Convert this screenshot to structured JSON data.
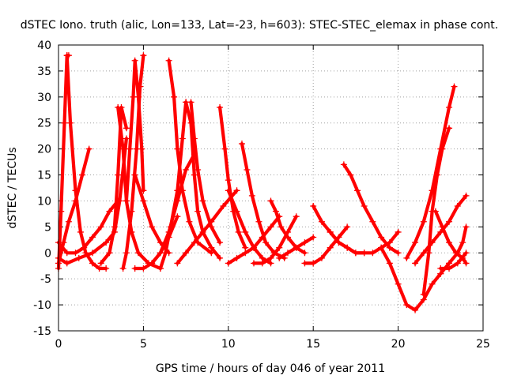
{
  "chart_data": {
    "type": "scatter",
    "title": "dSTEC Iono. truth (alic, Lon=133, Lat=-23, h=603): STEC-STEC_elemax in phase cont.",
    "xlabel": "GPS time / hours of day 046 of year 2011",
    "ylabel": "dSTEC  / TECUs",
    "xlim": [
      0,
      25
    ],
    "ylim": [
      -15,
      40
    ],
    "xticks": [
      0,
      5,
      10,
      15,
      20,
      25
    ],
    "yticks": [
      -15,
      -10,
      -5,
      0,
      5,
      10,
      15,
      20,
      25,
      30,
      35,
      40
    ],
    "grid": true,
    "marker": "plus",
    "color": "#ff0000",
    "series": [
      {
        "x": [
          0.0,
          0.15,
          0.35,
          0.5,
          0.6
        ],
        "y": [
          -3,
          8,
          25,
          38,
          38
        ]
      },
      {
        "x": [
          0.5,
          0.7,
          1.0,
          1.3,
          1.6,
          2.0,
          2.4,
          2.8
        ],
        "y": [
          38,
          25,
          12,
          4,
          0,
          -2,
          -3,
          -3
        ]
      },
      {
        "x": [
          0.0,
          0.3,
          0.6,
          1.0,
          1.4,
          1.8
        ],
        "y": [
          -2,
          2,
          6,
          10,
          15,
          20
        ]
      },
      {
        "x": [
          0.0,
          0.5,
          1.0,
          1.5,
          2.0,
          2.5,
          3.0,
          3.5
        ],
        "y": [
          2,
          0,
          0,
          1,
          3,
          5,
          8,
          10
        ]
      },
      {
        "x": [
          0.0,
          0.5,
          1.2,
          2.0,
          2.8,
          3.3,
          3.6,
          4.0
        ],
        "y": [
          -1,
          -2,
          -1,
          0,
          2,
          4,
          10,
          22
        ]
      },
      {
        "x": [
          2.5,
          3.0,
          3.3,
          3.5,
          3.7,
          4.0
        ],
        "y": [
          -2,
          0,
          5,
          15,
          28,
          24
        ]
      },
      {
        "x": [
          3.5,
          3.8,
          4.0,
          4.3,
          4.7,
          5.3,
          6.0
        ],
        "y": [
          28,
          20,
          10,
          4,
          0,
          -2,
          -3
        ]
      },
      {
        "x": [
          4.0,
          4.2,
          4.4,
          4.5,
          4.7,
          4.9,
          5.0
        ],
        "y": [
          10,
          20,
          30,
          37,
          30,
          20,
          12
        ]
      },
      {
        "x": [
          3.8,
          4.0,
          4.3,
          4.6,
          4.8,
          5.0
        ],
        "y": [
          -3,
          0,
          8,
          20,
          32,
          38
        ]
      },
      {
        "x": [
          4.5,
          5.0,
          5.5,
          6.0,
          6.5,
          7.0
        ],
        "y": [
          -3,
          -3,
          -2,
          0,
          3,
          7
        ]
      },
      {
        "x": [
          4.5,
          5.0,
          5.5,
          6.0,
          6.5
        ],
        "y": [
          15,
          10,
          5,
          2,
          0
        ]
      },
      {
        "x": [
          6.5,
          6.8,
          7.0,
          7.3,
          7.7,
          8.2,
          9.0
        ],
        "y": [
          37,
          30,
          20,
          12,
          6,
          2,
          0
        ]
      },
      {
        "x": [
          6.0,
          6.3,
          6.6,
          7.0,
          7.3,
          7.5
        ],
        "y": [
          -3,
          0,
          5,
          12,
          22,
          29
        ]
      },
      {
        "x": [
          7.5,
          7.8,
          8.0,
          8.2,
          8.5,
          9.0,
          9.5
        ],
        "y": [
          29,
          25,
          15,
          8,
          4,
          1,
          -1
        ]
      },
      {
        "x": [
          7.8,
          8.0,
          8.2,
          8.5,
          9.0,
          9.5
        ],
        "y": [
          29,
          22,
          16,
          10,
          5,
          2
        ]
      },
      {
        "x": [
          5.5,
          6.0,
          6.5,
          7.0,
          7.5,
          8.0
        ],
        "y": [
          -2,
          0,
          4,
          10,
          16,
          19
        ]
      },
      {
        "x": [
          7.0,
          7.5,
          8.0,
          9.0,
          9.7,
          10.5
        ],
        "y": [
          -2,
          0,
          2,
          6,
          9,
          12
        ]
      },
      {
        "x": [
          9.5,
          9.8,
          10.0,
          10.3,
          10.6,
          11.0
        ],
        "y": [
          28,
          20,
          14,
          8,
          4,
          1
        ]
      },
      {
        "x": [
          10.0,
          10.5,
          11.0,
          11.5,
          12.0,
          12.5
        ],
        "y": [
          12,
          8,
          4,
          1,
          -1,
          -2
        ]
      },
      {
        "x": [
          10.8,
          11.1,
          11.4,
          11.8,
          12.2,
          12.7,
          13.3
        ],
        "y": [
          21,
          16,
          11,
          6,
          2,
          0,
          -1
        ]
      },
      {
        "x": [
          10.0,
          10.5,
          11.0,
          11.5,
          12.0,
          12.5,
          13.0
        ],
        "y": [
          -2,
          -1,
          0,
          1,
          3,
          5,
          7
        ]
      },
      {
        "x": [
          12.5,
          12.8,
          13.1,
          13.5,
          14.0,
          14.5
        ],
        "y": [
          10,
          8,
          5,
          3,
          1,
          0
        ]
      },
      {
        "x": [
          11.5,
          12.0,
          12.5,
          13.0,
          13.5,
          14.0
        ],
        "y": [
          -2,
          -2,
          -1,
          1,
          4,
          7
        ]
      },
      {
        "x": [
          13.0,
          13.5,
          14.0,
          14.5,
          15.0
        ],
        "y": [
          -1,
          0,
          1,
          2,
          3
        ]
      },
      {
        "x": [
          15.0,
          15.5,
          16.0,
          16.5,
          17.0,
          17.5,
          18.0
        ],
        "y": [
          9,
          6,
          4,
          2,
          1,
          0,
          0
        ]
      },
      {
        "x": [
          14.5,
          15.0,
          15.5,
          16.0,
          16.5,
          17.0
        ],
        "y": [
          -2,
          -2,
          -1,
          1,
          3,
          5
        ]
      },
      {
        "x": [
          16.8,
          17.2,
          17.6,
          18.0,
          18.5,
          19.0,
          19.5,
          20.0
        ],
        "y": [
          17,
          15,
          12,
          9,
          6,
          3,
          1,
          0
        ]
      },
      {
        "x": [
          16.0,
          16.5,
          17.0,
          17.5,
          18.0,
          18.5,
          19.0,
          19.5,
          20.0
        ],
        "y": [
          4,
          2,
          1,
          0,
          0,
          0,
          1,
          2,
          4
        ]
      },
      {
        "x": [
          19.0,
          19.5,
          20.0,
          20.5,
          21.0,
          21.5,
          22.0,
          22.5
        ],
        "y": [
          1,
          -2,
          -6,
          -10,
          -11,
          -9,
          -6,
          -4
        ]
      },
      {
        "x": [
          20.5,
          21.0,
          21.5,
          22.0,
          22.5,
          23.0,
          23.3
        ],
        "y": [
          -1,
          2,
          6,
          12,
          20,
          28,
          32
        ]
      },
      {
        "x": [
          21.5,
          21.8,
          22.0,
          22.3,
          22.6,
          23.0
        ],
        "y": [
          -8,
          0,
          8,
          15,
          20,
          24
        ]
      },
      {
        "x": [
          21.0,
          21.5,
          22.0,
          22.5,
          23.0,
          23.5,
          24.0
        ],
        "y": [
          -2,
          0,
          2,
          4,
          6,
          9,
          11
        ]
      },
      {
        "x": [
          22.2,
          22.6,
          23.0,
          23.4,
          23.8,
          24.0
        ],
        "y": [
          8,
          5,
          2,
          0,
          -1,
          -2
        ]
      },
      {
        "x": [
          22.5,
          23.0,
          23.5,
          24.0
        ],
        "y": [
          -3,
          -3,
          -2,
          0
        ]
      },
      {
        "x": [
          22.5,
          23.0,
          23.5,
          23.8,
          24.0
        ],
        "y": [
          -4,
          -2,
          0,
          2,
          5
        ]
      }
    ]
  }
}
